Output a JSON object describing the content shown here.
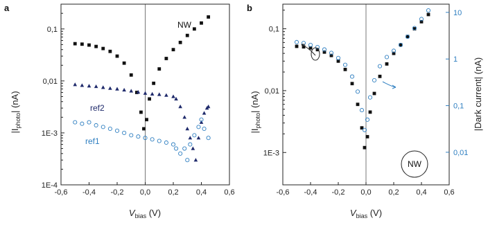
{
  "colors": {
    "nw": "#111111",
    "ref2": "#1f2a6b",
    "ref1": "#2f7fc1",
    "right_axis": "#2f7fc1"
  },
  "panel_a": {
    "label": "a",
    "ylabel_main": "|I",
    "ylabel_sub": "photo",
    "ylabel_end": "| (nA)",
    "xlabel_main": "V",
    "xlabel_sub": "bias",
    "xlabel_end": " (V)",
    "x_ticks": [
      "-0,6",
      "-0,4",
      "-0,2",
      "0,0",
      "0,2",
      "0,4",
      "0,6"
    ],
    "y_ticks": [
      "1E-4",
      "1E-3",
      "0,01",
      "0,1"
    ],
    "annotations": {
      "nw": "NW",
      "ref2": "ref2",
      "ref1": "ref1"
    }
  },
  "panel_b": {
    "label": "b",
    "ylabel_main": "|I",
    "ylabel_sub": "photo",
    "ylabel_end": "| (nA)",
    "ylabel_right": "|Dark current| (nA)",
    "xlabel_main": "V",
    "xlabel_sub": "bias",
    "xlabel_end": " (V)",
    "x_ticks": [
      "-0,6",
      "-0,4",
      "-0,2",
      "0,0",
      "0,2",
      "0,4",
      "0,6"
    ],
    "y_ticks_left": [
      "1E-3",
      "0,01",
      "0,1"
    ],
    "y_ticks_right": [
      "0,01",
      "0,1",
      "1",
      "10"
    ],
    "circle_label": "NW"
  },
  "chart_data": [
    {
      "type": "scatter",
      "title": "",
      "xlabel": "Vbias (V)",
      "ylabel": "|Iphoto| (nA)",
      "xlim": [
        -0.6,
        0.6
      ],
      "ylim": [
        0.0001,
        0.3
      ],
      "yscale": "log",
      "series": [
        {
          "name": "NW",
          "marker": "filled-square",
          "x": [
            -0.5,
            -0.45,
            -0.4,
            -0.35,
            -0.3,
            -0.25,
            -0.2,
            -0.15,
            -0.1,
            -0.06,
            -0.03,
            -0.01,
            0.01,
            0.03,
            0.06,
            0.1,
            0.15,
            0.2,
            0.25,
            0.3,
            0.35,
            0.4,
            0.45
          ],
          "y": [
            0.052,
            0.051,
            0.049,
            0.046,
            0.042,
            0.037,
            0.03,
            0.022,
            0.013,
            0.006,
            0.0025,
            0.0012,
            0.0018,
            0.0045,
            0.009,
            0.017,
            0.027,
            0.04,
            0.055,
            0.075,
            0.1,
            0.13,
            0.17
          ]
        },
        {
          "name": "ref2",
          "marker": "filled-triangle",
          "x": [
            -0.5,
            -0.45,
            -0.4,
            -0.35,
            -0.3,
            -0.25,
            -0.2,
            -0.15,
            -0.1,
            -0.05,
            0.0,
            0.05,
            0.1,
            0.15,
            0.2,
            0.22,
            0.25,
            0.28,
            0.3,
            0.32,
            0.34,
            0.36,
            0.38,
            0.4,
            0.42,
            0.44,
            0.45
          ],
          "y": [
            0.0085,
            0.0082,
            0.008,
            0.0078,
            0.0075,
            0.0072,
            0.007,
            0.0067,
            0.0064,
            0.0061,
            0.0058,
            0.0056,
            0.0055,
            0.0053,
            0.005,
            0.0045,
            0.0032,
            0.002,
            0.0012,
            0.0008,
            0.0005,
            0.0003,
            0.0008,
            0.0016,
            0.0024,
            0.003,
            0.0032
          ]
        },
        {
          "name": "ref1",
          "marker": "open-circle",
          "x": [
            -0.5,
            -0.45,
            -0.4,
            -0.35,
            -0.3,
            -0.25,
            -0.2,
            -0.15,
            -0.1,
            -0.05,
            0.0,
            0.05,
            0.1,
            0.15,
            0.2,
            0.22,
            0.25,
            0.28,
            0.3,
            0.32,
            0.35,
            0.38,
            0.4,
            0.42,
            0.45
          ],
          "y": [
            0.0016,
            0.0015,
            0.0016,
            0.0014,
            0.0013,
            0.0012,
            0.0011,
            0.001,
            0.0009,
            0.00085,
            0.0008,
            0.00075,
            0.0007,
            0.00065,
            0.0006,
            0.0005,
            0.0004,
            0.0005,
            0.0003,
            0.0006,
            0.0009,
            0.0013,
            0.0018,
            0.0012,
            0.0008
          ]
        }
      ]
    },
    {
      "type": "scatter",
      "title": "",
      "xlabel": "Vbias (V)",
      "ylabel": "|Iphoto| (nA)",
      "ylabel_right": "|Dark current| (nA)",
      "xlim": [
        -0.6,
        0.6
      ],
      "ylim": [
        0.0003,
        0.25
      ],
      "ylim_right": [
        0.002,
        15
      ],
      "yscale": "log",
      "series": [
        {
          "name": "",
          "axis": "left",
          "marker": "filled-square",
          "x": [
            -0.5,
            -0.45,
            -0.4,
            -0.35,
            -0.3,
            -0.25,
            -0.2,
            -0.15,
            -0.1,
            -0.06,
            -0.03,
            -0.01,
            0.01,
            0.03,
            0.06,
            0.1,
            0.15,
            0.2,
            0.25,
            0.3,
            0.35,
            0.4,
            0.45
          ],
          "y": [
            0.052,
            0.051,
            0.049,
            0.046,
            0.042,
            0.037,
            0.03,
            0.022,
            0.013,
            0.006,
            0.0025,
            0.0012,
            0.0018,
            0.0045,
            0.009,
            0.017,
            0.027,
            0.04,
            0.055,
            0.075,
            0.1,
            0.13,
            0.17
          ]
        },
        {
          "name": "",
          "axis": "right",
          "marker": "open-circle",
          "x": [
            -0.5,
            -0.45,
            -0.4,
            -0.35,
            -0.3,
            -0.25,
            -0.2,
            -0.15,
            -0.1,
            -0.06,
            -0.03,
            -0.01,
            0.01,
            0.03,
            0.06,
            0.1,
            0.15,
            0.2,
            0.25,
            0.3,
            0.35,
            0.4,
            0.45
          ],
          "y": [
            2.3,
            2.2,
            2.0,
            1.8,
            1.6,
            1.35,
            1.05,
            0.75,
            0.42,
            0.2,
            0.08,
            0.03,
            0.05,
            0.15,
            0.35,
            0.7,
            1.1,
            1.5,
            2.0,
            3.0,
            4.6,
            7.2,
            11.0
          ]
        }
      ]
    }
  ]
}
